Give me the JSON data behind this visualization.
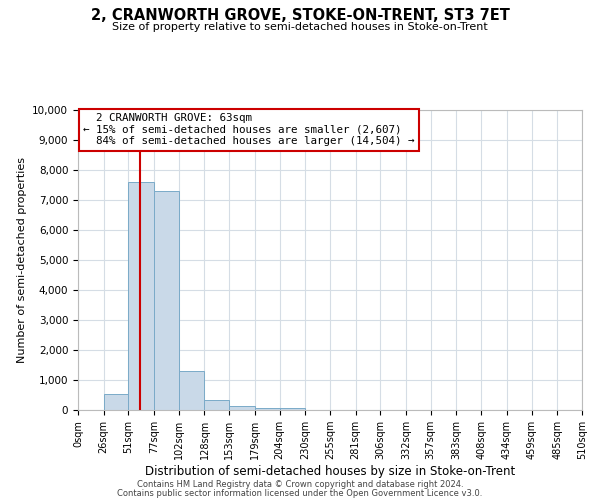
{
  "title": "2, CRANWORTH GROVE, STOKE-ON-TRENT, ST3 7ET",
  "subtitle": "Size of property relative to semi-detached houses in Stoke-on-Trent",
  "xlabel": "Distribution of semi-detached houses by size in Stoke-on-Trent",
  "ylabel": "Number of semi-detached properties",
  "property_size": 63,
  "property_label": "2 CRANWORTH GROVE: 63sqm",
  "pct_smaller": 15,
  "pct_larger": 84,
  "count_smaller": 2607,
  "count_larger": 14504,
  "bin_edges": [
    0,
    26,
    51,
    77,
    102,
    128,
    153,
    179,
    204,
    230,
    255,
    281,
    306,
    332,
    357,
    383,
    408,
    434,
    459,
    485,
    510
  ],
  "bin_heights": [
    0,
    550,
    7600,
    7300,
    1300,
    350,
    130,
    80,
    60,
    0,
    0,
    0,
    0,
    0,
    0,
    0,
    0,
    0,
    0,
    0
  ],
  "bar_facecolor": "#c9d9e8",
  "bar_edgecolor": "#7aaac8",
  "red_line_color": "#cc0000",
  "grid_color": "#d5dde5",
  "ylim": [
    0,
    10000
  ],
  "yticks": [
    0,
    1000,
    2000,
    3000,
    4000,
    5000,
    6000,
    7000,
    8000,
    9000,
    10000
  ],
  "annotation_box_edgecolor": "#cc0000",
  "footer_line1": "Contains HM Land Registry data © Crown copyright and database right 2024.",
  "footer_line2": "Contains public sector information licensed under the Open Government Licence v3.0."
}
